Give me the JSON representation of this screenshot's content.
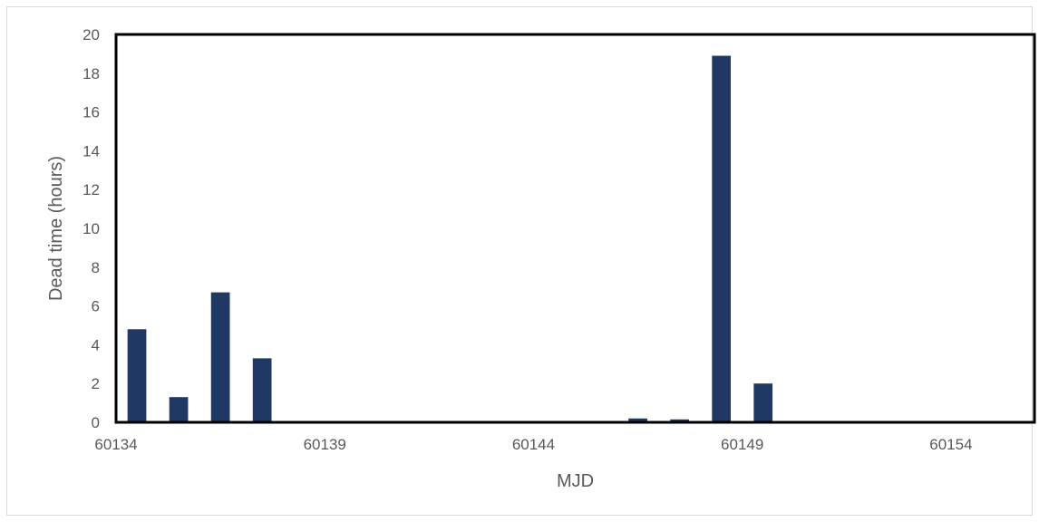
{
  "chart_data": {
    "type": "bar",
    "xlabel": "MJD",
    "ylabel": "Dead time (hours)",
    "xlim": [
      60134,
      60156
    ],
    "ylim": [
      0,
      20
    ],
    "x_ticks": [
      60134,
      60139,
      60144,
      60149,
      60154
    ],
    "y_ticks": [
      0,
      2,
      4,
      6,
      8,
      10,
      12,
      14,
      16,
      18,
      20
    ],
    "bar_color": "#1f3864",
    "bars": [
      {
        "x": 60134.5,
        "value": 4.8
      },
      {
        "x": 60135.5,
        "value": 1.3
      },
      {
        "x": 60136.5,
        "value": 6.7
      },
      {
        "x": 60137.5,
        "value": 3.3
      },
      {
        "x": 60146.5,
        "value": 0.2
      },
      {
        "x": 60147.5,
        "value": 0.15
      },
      {
        "x": 60148.5,
        "value": 18.9
      },
      {
        "x": 60149.5,
        "value": 2.0
      }
    ]
  }
}
